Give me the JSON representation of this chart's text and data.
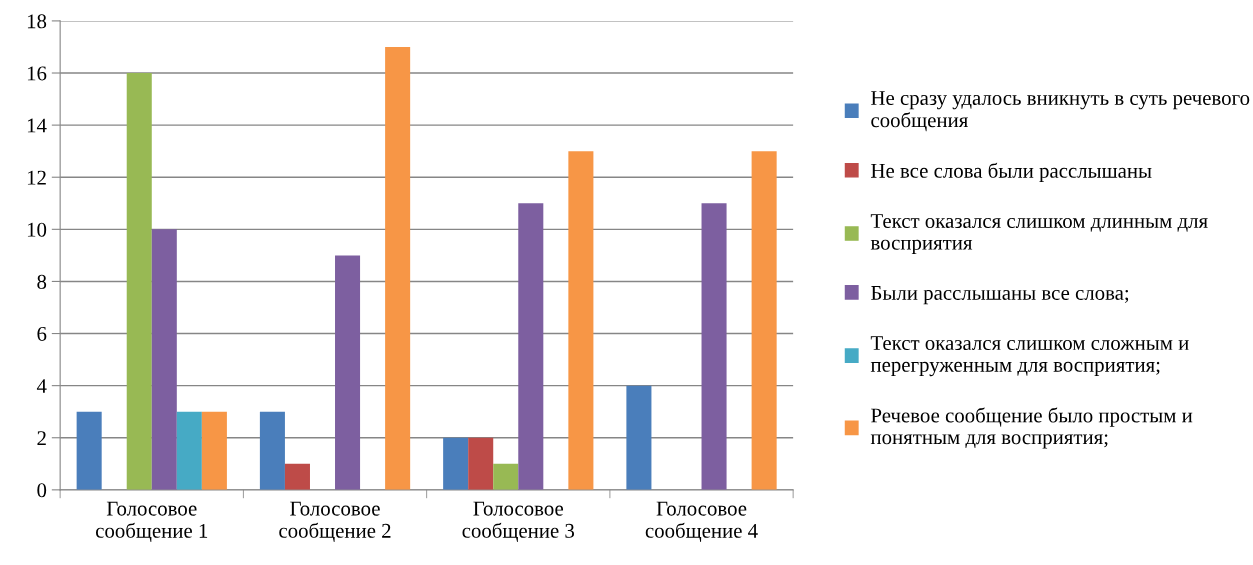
{
  "chart_data": {
    "type": "bar",
    "categories": [
      "Голосовое сообщение 1",
      "Голосовое сообщение 2",
      "Голосовое сообщение 3",
      "Голосовое сообщение 4"
    ],
    "series": [
      {
        "name": "Не сразу удалось вникнуть в суть речевого сообщения",
        "color": "#4a7ebb",
        "values": [
          3,
          3,
          2,
          4
        ]
      },
      {
        "name": "Не все слова были расслышаны",
        "color": "#be4b48",
        "values": [
          0,
          1,
          2,
          0
        ]
      },
      {
        "name": "Текст оказался слишком длинным для восприятия",
        "color": "#98b954",
        "values": [
          16,
          0,
          1,
          0
        ]
      },
      {
        "name": "Были расслышаны все слова;",
        "color": "#7d5fa0",
        "values": [
          10,
          9,
          11,
          11
        ]
      },
      {
        "name": "Текст оказался слишком сложным и перегруженным для восприятия;",
        "color": "#46aac5",
        "values": [
          3,
          0,
          0,
          0
        ]
      },
      {
        "name": "Речевое сообщение было простым и понятным для восприятия;",
        "color": "#f79646",
        "values": [
          3,
          17,
          13,
          13
        ]
      }
    ],
    "ylim": [
      0,
      18
    ],
    "yticks": [
      0,
      2,
      4,
      6,
      8,
      10,
      12,
      14,
      16,
      18
    ],
    "grid": "y",
    "legend": "right"
  }
}
